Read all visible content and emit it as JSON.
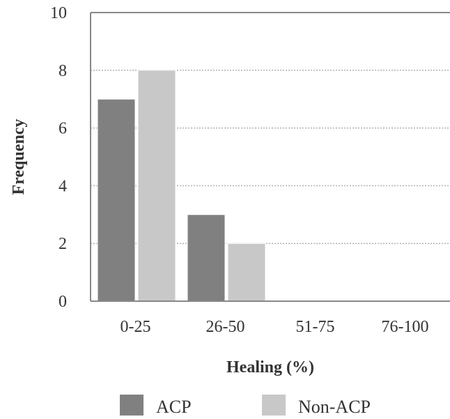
{
  "chart_data": {
    "type": "bar",
    "title": "",
    "xlabel": "Healing (%)",
    "ylabel": "Frequency",
    "categories": [
      "0-25",
      "26-50",
      "51-75",
      "76-100"
    ],
    "series": [
      {
        "name": "ACP",
        "values": [
          7,
          3,
          0,
          0
        ],
        "color": "#808080"
      },
      {
        "name": "Non-ACP",
        "values": [
          8,
          2,
          0,
          0
        ],
        "color": "#c8c8c8"
      }
    ],
    "ylim": [
      0,
      10
    ],
    "yticks": [
      "0",
      "2",
      "4",
      "6",
      "8",
      "10"
    ],
    "grid": "horizontal dotted",
    "legend": "bottom"
  }
}
